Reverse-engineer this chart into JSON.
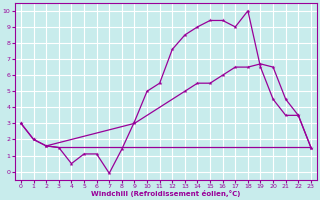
{
  "xlabel": "Windchill (Refroidissement éolien,°C)",
  "background_color": "#c8ecec",
  "grid_color": "#ffffff",
  "line_color": "#990099",
  "xlim": [
    -0.5,
    23.5
  ],
  "ylim": [
    -0.5,
    10.5
  ],
  "xticks": [
    0,
    1,
    2,
    3,
    4,
    5,
    6,
    7,
    8,
    9,
    10,
    11,
    12,
    13,
    14,
    15,
    16,
    17,
    18,
    19,
    20,
    21,
    22,
    23
  ],
  "yticks": [
    0,
    1,
    2,
    3,
    4,
    5,
    6,
    7,
    8,
    9,
    10
  ],
  "line1_x": [
    0,
    1,
    2,
    3,
    4,
    5,
    6,
    7,
    8,
    9,
    10,
    11,
    12,
    13,
    14,
    15,
    16,
    17,
    18,
    19,
    20,
    21,
    22,
    23
  ],
  "line1_y": [
    3,
    2,
    1.6,
    1.5,
    0.5,
    1.1,
    1.1,
    -0.1,
    1.4,
    3.1,
    5.0,
    5.5,
    7.6,
    8.5,
    9.0,
    9.4,
    9.4,
    9.0,
    10.0,
    6.5,
    4.5,
    3.5,
    3.5,
    1.5
  ],
  "line2_x": [
    2,
    3,
    4,
    5,
    6,
    7,
    8,
    9,
    10,
    11,
    12,
    13,
    14,
    15,
    16,
    17,
    18,
    19,
    20,
    21,
    22,
    23
  ],
  "line2_y": [
    1.6,
    1.5,
    1.5,
    1.5,
    1.5,
    1.5,
    1.5,
    1.5,
    1.5,
    1.5,
    1.5,
    1.5,
    1.5,
    1.5,
    1.5,
    1.5,
    1.5,
    1.5,
    1.5,
    1.5,
    1.5,
    1.5
  ],
  "line3_x": [
    0,
    1,
    2,
    9,
    13,
    14,
    15,
    16,
    17,
    18,
    19,
    20,
    21,
    22,
    23
  ],
  "line3_y": [
    3,
    2,
    1.6,
    3.0,
    5.0,
    5.5,
    5.5,
    6.0,
    6.5,
    6.5,
    6.7,
    6.5,
    4.5,
    3.5,
    1.5
  ]
}
